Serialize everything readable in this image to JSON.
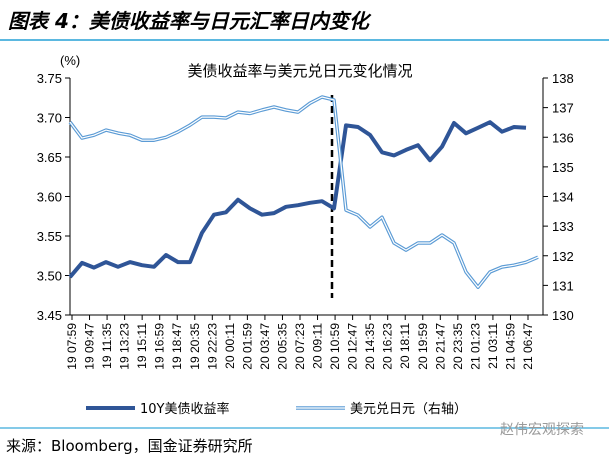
{
  "header": {
    "title": "图表 4：美债收益率与日元汇率日内变化"
  },
  "footer": {
    "source": "来源：Bloomberg，国金证券研究所",
    "watermark": "赵伟宏观探索"
  },
  "colors": {
    "accent_rule": "#5BB8E0",
    "yield": "#2F5597",
    "usdjpy": "#5B9BD5"
  },
  "chart_data": {
    "type": "line",
    "title": "美债收益率与美元兑日元变化情况",
    "ylabel": "(%)",
    "y_left": {
      "lim": [
        3.45,
        3.75
      ],
      "ticks": [
        "3.45",
        "3.50",
        "3.55",
        "3.60",
        "3.65",
        "3.70",
        "3.75"
      ]
    },
    "y_right": {
      "lim": [
        130,
        138
      ],
      "ticks": [
        "130",
        "131",
        "132",
        "133",
        "134",
        "135",
        "136",
        "137",
        "138"
      ]
    },
    "x_ticks": [
      "19 07:59",
      "19 09:47",
      "19 11:35",
      "19 13:23",
      "19 15:11",
      "19 16:59",
      "19 18:47",
      "19 20:35",
      "19 22:23",
      "20 00:11",
      "20 01:59",
      "20 03:47",
      "20 05:35",
      "20 07:23",
      "20 09:11",
      "20 10:59",
      "20 12:47",
      "20 14:35",
      "20 16:23",
      "20 18:11",
      "20 19:59",
      "20 21:47",
      "20 23:35",
      "21 01:23",
      "21 03:11",
      "21 04:59",
      "21 06:47"
    ],
    "grid": false,
    "legend_placement": "bottom",
    "vertical_marker": {
      "style": "dashed",
      "near_x": "20 10:59"
    },
    "series": [
      {
        "name": "10Y美债收益率",
        "axis": "left",
        "values": [
          3.498,
          3.516,
          3.51,
          3.517,
          3.511,
          3.517,
          3.513,
          3.511,
          3.526,
          3.517,
          3.517,
          3.554,
          3.577,
          3.58,
          3.596,
          3.585,
          3.577,
          3.579,
          3.587,
          3.589,
          3.592,
          3.594,
          3.585,
          3.69,
          3.688,
          3.678,
          3.656,
          3.652,
          3.659,
          3.665,
          3.646,
          3.663,
          3.693,
          3.68,
          3.687,
          3.694,
          3.682,
          3.688,
          3.687,
          null
        ]
      },
      {
        "name": "美元兑日元（右轴）",
        "axis": "right",
        "values": [
          136.51,
          135.97,
          136.07,
          136.24,
          136.14,
          136.07,
          135.9,
          135.9,
          136.0,
          136.18,
          136.41,
          136.68,
          136.68,
          136.65,
          136.85,
          136.8,
          136.92,
          137.02,
          136.92,
          136.85,
          137.15,
          137.36,
          137.26,
          133.54,
          133.37,
          132.97,
          133.3,
          132.43,
          132.19,
          132.43,
          132.43,
          132.7,
          132.43,
          131.45,
          130.94,
          131.45,
          131.62,
          131.68,
          131.78,
          131.95
        ]
      }
    ]
  }
}
